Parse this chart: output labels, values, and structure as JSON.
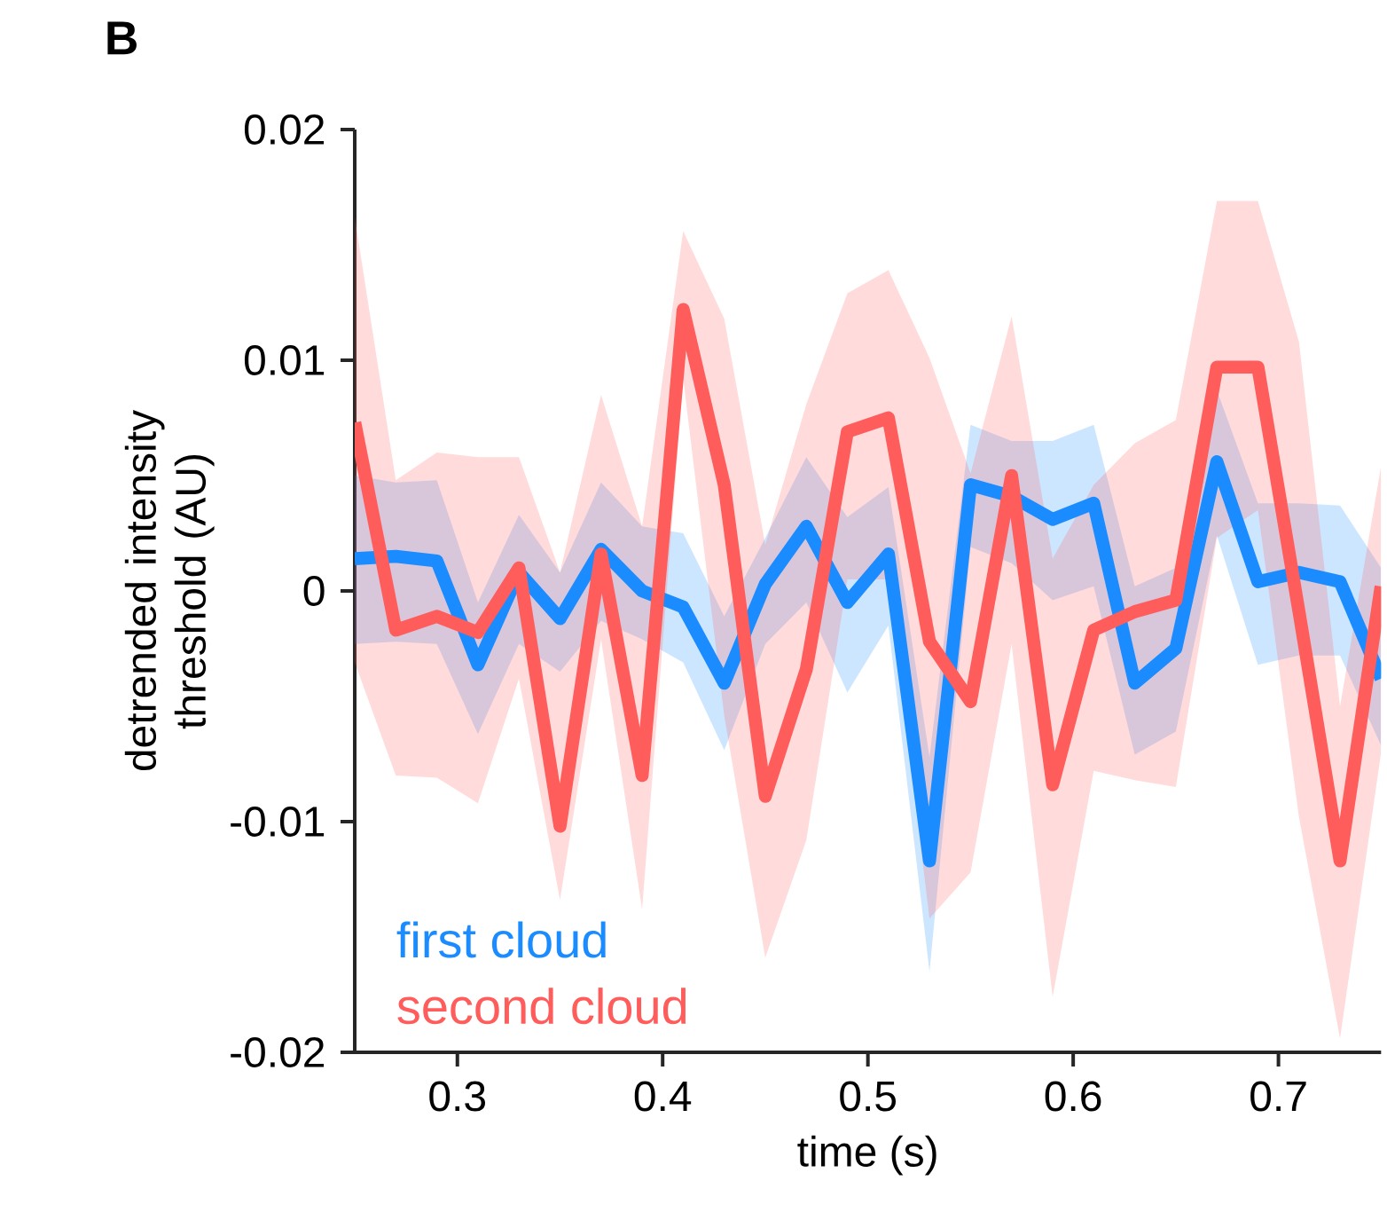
{
  "chart_data": {
    "type": "line",
    "xlabel": "time (s)",
    "ylabel": "detrended intensity threshold (AU)",
    "annotations": [
      "B"
    ],
    "x": [
      0.25,
      0.27,
      0.29,
      0.31,
      0.33,
      0.35,
      0.37,
      0.39,
      0.41,
      0.43,
      0.45,
      0.47,
      0.49,
      0.51,
      0.53,
      0.55,
      0.57,
      0.59,
      0.61,
      0.63,
      0.65,
      0.67,
      0.69,
      0.71,
      0.73,
      0.75
    ],
    "series": [
      {
        "name": "first cloud",
        "color": "#1a8cff",
        "values": [
          0.0014,
          0.0015,
          0.0013,
          -0.0032,
          0.0008,
          -0.0012,
          0.0018,
          0.0,
          -0.0007,
          -0.004,
          0.0003,
          0.0028,
          -0.0005,
          0.0016,
          -0.0117,
          0.0046,
          0.0041,
          0.0031,
          0.0038,
          -0.004,
          -0.0025,
          0.0056,
          0.0004,
          0.0008,
          0.0004,
          -0.0038
        ],
        "upper": [
          0.005,
          0.0047,
          0.0048,
          -0.0005,
          0.0033,
          0.0008,
          0.0047,
          0.0028,
          0.0025,
          -0.0011,
          0.0023,
          0.0058,
          0.0032,
          0.0045,
          -0.0072,
          0.0072,
          0.0065,
          0.0065,
          0.0072,
          0.0002,
          0.001,
          0.0087,
          0.0038,
          0.0038,
          0.0037,
          0.001
        ],
        "lower": [
          -0.0023,
          -0.0022,
          -0.0023,
          -0.0062,
          -0.0023,
          -0.0035,
          -0.0013,
          -0.0021,
          -0.0031,
          -0.0069,
          -0.0023,
          -0.0005,
          -0.0044,
          -0.0015,
          -0.0165,
          0.0019,
          0.0012,
          -0.0004,
          0.0002,
          -0.0071,
          -0.0061,
          0.0024,
          -0.0032,
          -0.0028,
          -0.0028,
          -0.0067
        ]
      },
      {
        "name": "second cloud",
        "color": "#ff5c5c",
        "values": [
          0.0073,
          -0.0017,
          -0.0011,
          -0.0018,
          0.001,
          -0.0102,
          0.0016,
          -0.008,
          0.0122,
          0.0046,
          -0.0089,
          -0.0034,
          0.0069,
          0.0075,
          -0.0022,
          -0.0048,
          0.005,
          -0.0084,
          -0.0017,
          -0.0009,
          -0.0004,
          0.0097,
          0.0097,
          -0.0009,
          -0.0117,
          0.0002
        ],
        "upper": [
          0.0162,
          0.0048,
          0.006,
          0.0058,
          0.0058,
          0.0008,
          0.0085,
          0.0028,
          0.0156,
          0.0118,
          0.002,
          0.0081,
          0.0129,
          0.0139,
          0.0101,
          0.0051,
          0.0119,
          0.0014,
          0.0046,
          0.0064,
          0.0074,
          0.0169,
          0.0169,
          0.0108,
          -0.005,
          0.0054
        ],
        "lower": [
          -0.0031,
          -0.008,
          -0.0081,
          -0.0092,
          -0.0038,
          -0.0134,
          -0.0021,
          -0.0138,
          0.0092,
          -0.0054,
          -0.0159,
          -0.0108,
          0.0005,
          0.0005,
          -0.0142,
          -0.0122,
          -0.0023,
          -0.0176,
          -0.0078,
          -0.0082,
          -0.0085,
          0.0023,
          0.0035,
          -0.0098,
          -0.0194,
          -0.007
        ]
      }
    ],
    "xlim": [
      0.25,
      0.75
    ],
    "xticks": [
      0.3,
      0.4,
      0.5,
      0.6,
      0.7
    ],
    "ylim": [
      -0.02,
      0.02
    ],
    "yticks": [
      -0.02,
      -0.01,
      0,
      0.01,
      0.02
    ],
    "legend": "bottom left",
    "grid": false,
    "line_style": "solid",
    "marker": "none"
  }
}
